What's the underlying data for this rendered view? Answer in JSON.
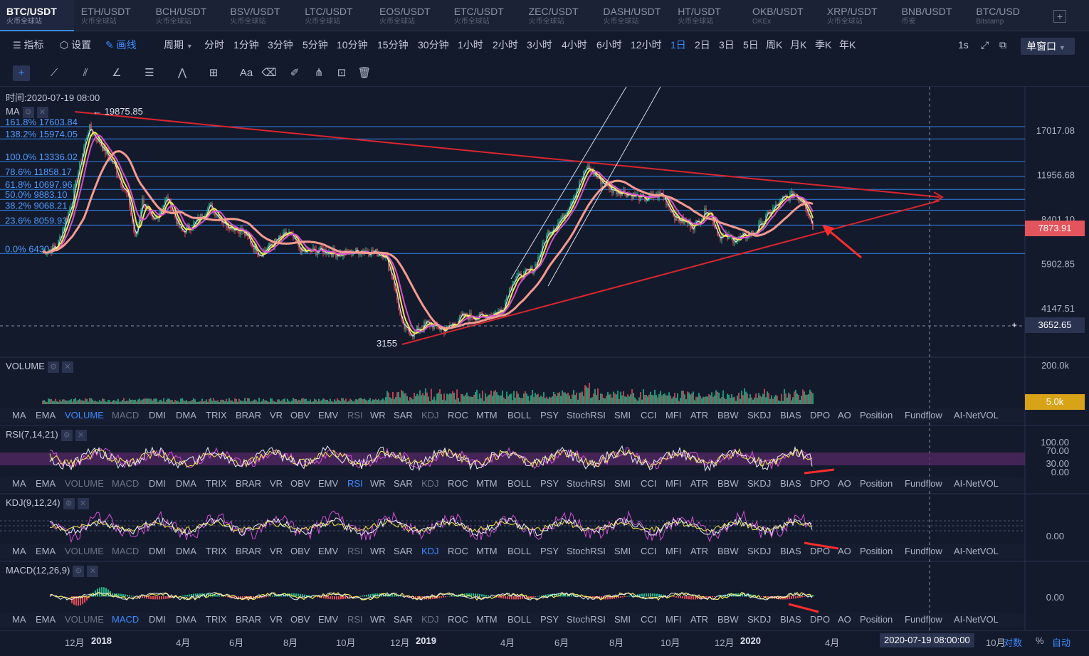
{
  "tabs": [
    {
      "symbol": "BTC/USDT",
      "exchange": "火币全球站",
      "active": true
    },
    {
      "symbol": "ETH/USDT",
      "exchange": "火币全球站"
    },
    {
      "symbol": "BCH/USDT",
      "exchange": "火币全球站"
    },
    {
      "symbol": "BSV/USDT",
      "exchange": "火币全球站"
    },
    {
      "symbol": "LTC/USDT",
      "exchange": "火币全球站"
    },
    {
      "symbol": "EOS/USDT",
      "exchange": "火币全球站"
    },
    {
      "symbol": "ETC/USDT",
      "exchange": "火币全球站"
    },
    {
      "symbol": "ZEC/USDT",
      "exchange": "火币全球站"
    },
    {
      "symbol": "DASH/USDT",
      "exchange": "火币全球站"
    },
    {
      "symbol": "HT/USDT",
      "exchange": "火币全球站"
    },
    {
      "symbol": "OKB/USDT",
      "exchange": "OKEx"
    },
    {
      "symbol": "XRP/USDT",
      "exchange": "火币全球站"
    },
    {
      "symbol": "BNB/USDT",
      "exchange": "币安"
    },
    {
      "symbol": "BTC/USD",
      "exchange": "Bitstamp"
    }
  ],
  "tab_add": "+",
  "toolbar": {
    "indicator": "指标",
    "settings": "设置",
    "draw": "画线",
    "period": "周期",
    "periods": [
      "分时",
      "1分钟",
      "3分钟",
      "5分钟",
      "10分钟",
      "15分钟",
      "30分钟",
      "1小时",
      "2小时",
      "3小时",
      "4小时",
      "6小时",
      "12小时",
      "1日",
      "2日",
      "3日",
      "5日",
      "周K",
      "月K",
      "季K",
      "年K"
    ],
    "active_period": "1日",
    "refresh": "1s",
    "window": "单窗口"
  },
  "draw_tools": {
    "text_tool": "Aa"
  },
  "chart": {
    "time_label": "时间:2020-07-19 08:00",
    "ma_label": "MA",
    "high_label": "← 19875.85",
    "low_label": "3155",
    "fib_levels": [
      {
        "label": "161.8% 17603.84",
        "value": 17603.84
      },
      {
        "label": "138.2% 15974.05",
        "value": 15974.05
      },
      {
        "label": "100.0% 13336.02",
        "value": 13336.02
      },
      {
        "label": "78.6% 11858.17",
        "value": 11858.17
      },
      {
        "label": "61.8% 10697.96",
        "value": 10697.96
      },
      {
        "label": "50.0% 9883.10",
        "value": 9883.1
      },
      {
        "label": "38.2% 9068.21",
        "value": 9068.21
      },
      {
        "label": "23.6% 8059.93",
        "value": 8059.93
      },
      {
        "label": "0.0% 6430",
        "value": 6430
      }
    ],
    "price_axis": [
      "17017.08",
      "11956.68",
      "8401.10",
      "5902.85",
      "4147.51"
    ],
    "current_price": "7873.91",
    "cursor_price": "3652.65",
    "cursor_plus": "+",
    "colors": {
      "up": "#1fb88a",
      "down": "#e34b57",
      "fib": "#2f7fe0",
      "trend": "#d9262e",
      "ma1": "#dfe4f0",
      "ma2": "#f5e84a",
      "ma3": "#d54ed6",
      "ma4": "#f59a91"
    }
  },
  "volume": {
    "label": "VOLUME",
    "axis_top": "200.0k",
    "current": "5.0k"
  },
  "indicator_bar": [
    "MA",
    "EMA",
    "VOLUME",
    "MACD",
    "DMI",
    "DMA",
    "TRIX",
    "BRAR",
    "VR",
    "OBV",
    "EMV",
    "RSI",
    "WR",
    "SAR",
    "KDJ",
    "ROC",
    "MTM",
    "BOLL",
    "PSY",
    "StochRSI",
    "SMI",
    "CCI",
    "MFI",
    "ATR",
    "BBW",
    "SKDJ",
    "BIAS",
    "DPO",
    "AO",
    "Position",
    "Fundflow",
    "AI-NetVOL"
  ],
  "rsi": {
    "label": "RSI(7,14,21)",
    "axis": [
      "100.00",
      "70.00",
      "30.00",
      "0.00"
    ]
  },
  "kdj": {
    "label": "KDJ(9,12,24)",
    "axis": [
      "0.00"
    ]
  },
  "macd": {
    "label": "MACD(12,26,9)",
    "axis": [
      "0.00"
    ]
  },
  "x_axis": [
    {
      "text": "12月",
      "bold": false
    },
    {
      "text": "2018",
      "bold": true
    },
    {
      "text": "4月",
      "bold": false
    },
    {
      "text": "6月",
      "bold": false
    },
    {
      "text": "8月",
      "bold": false
    },
    {
      "text": "10月",
      "bold": false
    },
    {
      "text": "12月",
      "bold": false
    },
    {
      "text": "2019",
      "bold": true
    },
    {
      "text": "4月",
      "bold": false
    },
    {
      "text": "6月",
      "bold": false
    },
    {
      "text": "8月",
      "bold": false
    },
    {
      "text": "10月",
      "bold": false
    },
    {
      "text": "12月",
      "bold": false
    },
    {
      "text": "2020",
      "bold": true
    },
    {
      "text": "4月",
      "bold": false
    },
    {
      "text": "10月",
      "bold": false
    }
  ],
  "x_cursor": "2020-07-19 08:00:00",
  "bottom_right": {
    "log": "对数",
    "pct": "%",
    "auto": "自动"
  }
}
